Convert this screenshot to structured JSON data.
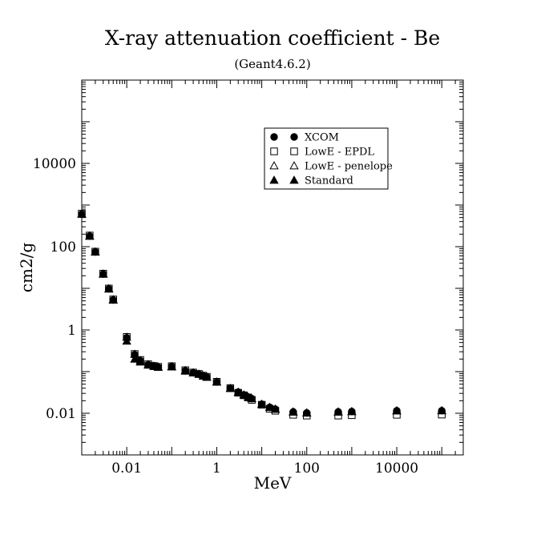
{
  "chart_data": {
    "type": "scatter",
    "title": "X-ray attenuation coefficient - Be",
    "subtitle": "(Geant4.6.2)",
    "xlabel": "MeV",
    "ylabel": "cm2/g",
    "xscale": "log",
    "yscale": "log",
    "xlim": [
      0.001,
      300000
    ],
    "ylim": [
      0.001,
      1000000
    ],
    "x_tick_values": [
      0.01,
      1,
      100,
      10000
    ],
    "x_tick_labels": [
      "0.01",
      "1",
      "100",
      "10000"
    ],
    "y_tick_values": [
      0.01,
      1,
      100,
      10000
    ],
    "y_tick_labels": [
      "0.01",
      "1",
      "100",
      "10000"
    ],
    "grid": false,
    "legend_position": "top-right",
    "series": [
      {
        "name": "XCOM",
        "marker": "circle-filled",
        "points": [
          [
            0.001,
            604
          ],
          [
            0.0015,
            179
          ],
          [
            0.002,
            74.6
          ],
          [
            0.003,
            22
          ],
          [
            0.004,
            9.68
          ],
          [
            0.005,
            5.25
          ],
          [
            0.01,
            0.65
          ],
          [
            0.015,
            0.256
          ],
          [
            0.02,
            0.183
          ],
          [
            0.03,
            0.146
          ],
          [
            0.04,
            0.135
          ],
          [
            0.05,
            0.128
          ],
          [
            0.1,
            0.132
          ],
          [
            0.2,
            0.105
          ],
          [
            0.3,
            0.094
          ],
          [
            0.4,
            0.087
          ],
          [
            0.5,
            0.079
          ],
          [
            0.6,
            0.074
          ],
          [
            1,
            0.0565
          ],
          [
            2,
            0.0397
          ],
          [
            3,
            0.0322
          ],
          [
            4,
            0.0276
          ],
          [
            5,
            0.0245
          ],
          [
            6,
            0.0225
          ],
          [
            10,
            0.0165
          ],
          [
            15,
            0.0139
          ],
          [
            20,
            0.0126
          ],
          [
            50,
            0.0108
          ],
          [
            100,
            0.0102
          ],
          [
            500,
            0.0108
          ],
          [
            1000,
            0.011
          ],
          [
            10000,
            0.0115
          ],
          [
            100000,
            0.0115
          ]
        ]
      },
      {
        "name": "LowE - EPDL",
        "marker": "square-open",
        "points": [
          [
            0.001,
            620
          ],
          [
            0.0015,
            185
          ],
          [
            0.002,
            76
          ],
          [
            0.003,
            22.5
          ],
          [
            0.004,
            9.9
          ],
          [
            0.005,
            5.4
          ],
          [
            0.01,
            0.68
          ],
          [
            0.015,
            0.265
          ],
          [
            0.02,
            0.19
          ],
          [
            0.03,
            0.15
          ],
          [
            0.04,
            0.137
          ],
          [
            0.05,
            0.13
          ],
          [
            0.1,
            0.135
          ],
          [
            0.2,
            0.108
          ],
          [
            0.3,
            0.095
          ],
          [
            0.4,
            0.088
          ],
          [
            0.5,
            0.08
          ],
          [
            0.6,
            0.075
          ],
          [
            1,
            0.057
          ],
          [
            2,
            0.04
          ],
          [
            3,
            0.031
          ],
          [
            4,
            0.027
          ],
          [
            5,
            0.024
          ],
          [
            6,
            0.021
          ],
          [
            10,
            0.016
          ],
          [
            15,
            0.0128
          ],
          [
            20,
            0.0115
          ],
          [
            50,
            0.0092
          ],
          [
            100,
            0.0088
          ],
          [
            500,
            0.0088
          ],
          [
            1000,
            0.009
          ],
          [
            10000,
            0.0092
          ],
          [
            100000,
            0.0093
          ]
        ]
      },
      {
        "name": "LowE - penelope",
        "marker": "triangle-open",
        "points": [
          [
            0.001,
            610
          ],
          [
            0.0015,
            182
          ],
          [
            0.002,
            75
          ],
          [
            0.003,
            22.2
          ],
          [
            0.004,
            9.8
          ],
          [
            0.005,
            5.35
          ],
          [
            0.01,
            0.67
          ],
          [
            0.015,
            0.26
          ],
          [
            0.02,
            0.186
          ],
          [
            0.03,
            0.148
          ],
          [
            0.04,
            0.136
          ],
          [
            0.05,
            0.129
          ],
          [
            0.1,
            0.133
          ],
          [
            0.2,
            0.106
          ],
          [
            0.3,
            0.094
          ],
          [
            0.4,
            0.087
          ],
          [
            0.5,
            0.079
          ],
          [
            0.6,
            0.074
          ],
          [
            1,
            0.0565
          ],
          [
            2,
            0.0398
          ],
          [
            3,
            0.0322
          ],
          [
            4,
            0.0276
          ],
          [
            5,
            0.0245
          ],
          [
            6,
            0.0225
          ],
          [
            10,
            0.0165
          ],
          [
            15,
            0.0139
          ],
          [
            20,
            0.0126
          ],
          [
            50,
            0.0108
          ],
          [
            100,
            0.0103
          ],
          [
            500,
            0.0108
          ],
          [
            1000,
            0.011
          ],
          [
            10000,
            0.0115
          ],
          [
            100000,
            0.0116
          ]
        ]
      },
      {
        "name": "Standard",
        "marker": "triangle-filled",
        "points": [
          [
            0.001,
            600
          ],
          [
            0.0015,
            178
          ],
          [
            0.002,
            74
          ],
          [
            0.003,
            21.8
          ],
          [
            0.004,
            9.6
          ],
          [
            0.005,
            5.2
          ],
          [
            0.01,
            0.54
          ],
          [
            0.015,
            0.2
          ],
          [
            0.02,
            0.17
          ],
          [
            0.03,
            0.143
          ],
          [
            0.04,
            0.133
          ],
          [
            0.05,
            0.127
          ],
          [
            0.1,
            0.13
          ],
          [
            0.2,
            0.103
          ],
          [
            0.3,
            0.093
          ],
          [
            0.4,
            0.086
          ],
          [
            0.5,
            0.078
          ],
          [
            0.6,
            0.073
          ],
          [
            1,
            0.056
          ],
          [
            2,
            0.0395
          ],
          [
            3,
            0.032
          ],
          [
            4,
            0.0275
          ],
          [
            5,
            0.0244
          ],
          [
            6,
            0.0224
          ],
          [
            10,
            0.0164
          ],
          [
            15,
            0.0138
          ],
          [
            20,
            0.0125
          ],
          [
            50,
            0.0107
          ],
          [
            100,
            0.0101
          ],
          [
            500,
            0.0107
          ],
          [
            1000,
            0.011
          ],
          [
            10000,
            0.0114
          ],
          [
            100000,
            0.0115
          ]
        ]
      }
    ]
  }
}
